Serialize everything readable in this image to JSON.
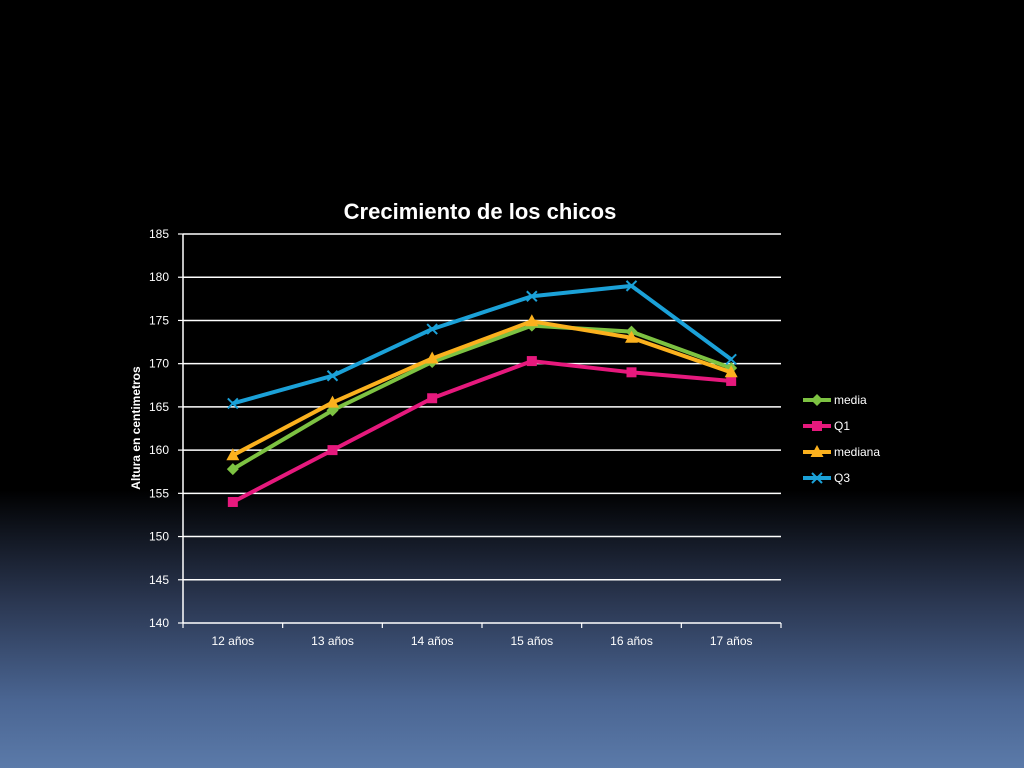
{
  "chart_data": {
    "type": "line",
    "title": "Crecimiento de los chicos",
    "xlabel": "",
    "ylabel": "Altura en centimetros",
    "categories": [
      "12 años",
      "13 años",
      "14 años",
      "15 años",
      "16 años",
      "17 años"
    ],
    "ylim": [
      140,
      185
    ],
    "yticks": [
      140,
      145,
      150,
      155,
      160,
      165,
      170,
      175,
      180,
      185
    ],
    "grid": true,
    "legend_position": "right",
    "series": [
      {
        "name": "media",
        "color": "#7dc242",
        "marker": "diamond",
        "values": [
          157.8,
          164.6,
          170.2,
          174.4,
          173.7,
          169.5
        ]
      },
      {
        "name": "Q1",
        "color": "#e6197d",
        "marker": "square",
        "values": [
          154.0,
          160.0,
          166.0,
          170.3,
          169.0,
          168.0
        ]
      },
      {
        "name": "mediana",
        "color": "#fbb11e",
        "marker": "triangle",
        "values": [
          159.4,
          165.5,
          170.6,
          174.9,
          173.0,
          169.0
        ]
      },
      {
        "name": "Q3",
        "color": "#1ba1d8",
        "marker": "x",
        "values": [
          165.4,
          168.6,
          174.0,
          177.8,
          179.0,
          170.5
        ]
      }
    ]
  }
}
